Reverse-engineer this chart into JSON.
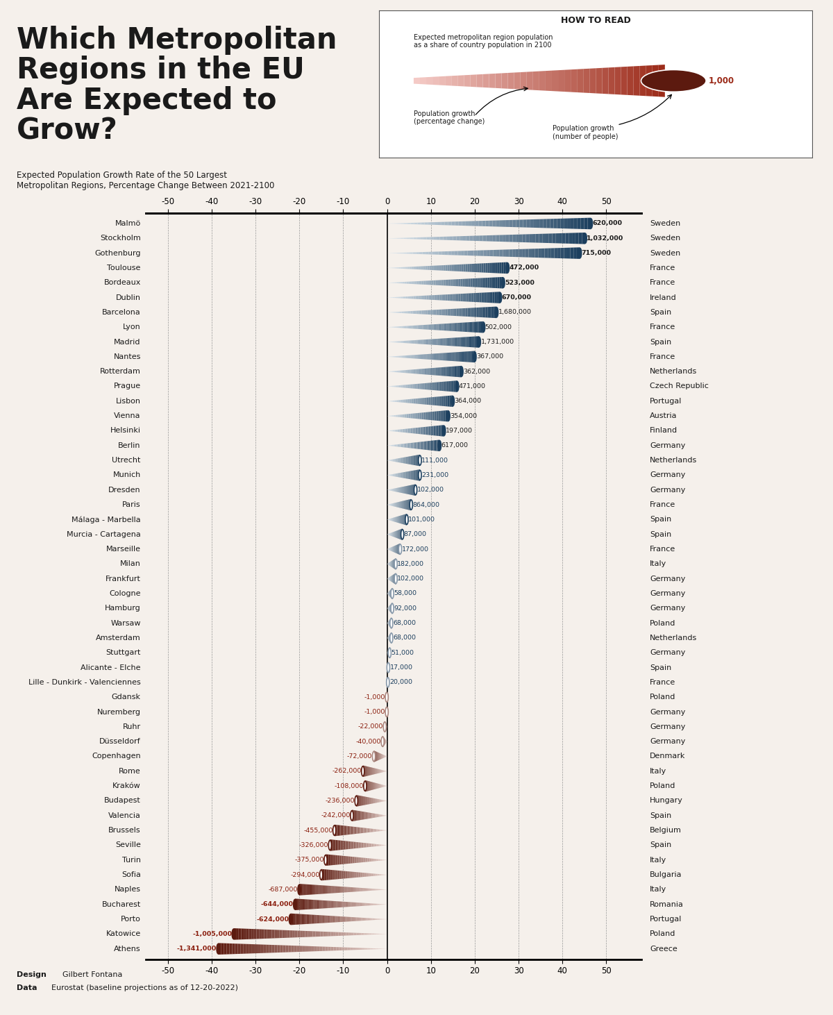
{
  "cities": [
    "Malmö",
    "Stockholm",
    "Gothenburg",
    "Toulouse",
    "Bordeaux",
    "Dublin",
    "Barcelona",
    "Lyon",
    "Madrid",
    "Nantes",
    "Rotterdam",
    "Prague",
    "Lisbon",
    "Vienna",
    "Helsinki",
    "Berlin",
    "Utrecht",
    "Munich",
    "Dresden",
    "Paris",
    "Málaga - Marbella",
    "Murcia - Cartagena",
    "Marseille",
    "Milan",
    "Frankfurt",
    "Cologne",
    "Hamburg",
    "Warsaw",
    "Amsterdam",
    "Stuttgart",
    "Alicante - Elche",
    "Lille - Dunkirk - Valenciennes",
    "Gdansk",
    "Nuremberg",
    "Ruhr",
    "Düsseldorf",
    "Copenhagen",
    "Rome",
    "Kraków",
    "Budapest",
    "Valencia",
    "Brussels",
    "Seville",
    "Turin",
    "Sofia",
    "Naples",
    "Bucharest",
    "Porto",
    "Katowice",
    "Athens"
  ],
  "countries": [
    "Sweden",
    "Sweden",
    "Sweden",
    "France",
    "France",
    "Ireland",
    "Spain",
    "France",
    "Spain",
    "France",
    "Netherlands",
    "Czech Republic",
    "Portugal",
    "Austria",
    "Finland",
    "Germany",
    "Netherlands",
    "Germany",
    "Germany",
    "France",
    "Spain",
    "Spain",
    "France",
    "Italy",
    "Germany",
    "Germany",
    "Germany",
    "Poland",
    "Netherlands",
    "Germany",
    "Spain",
    "France",
    "Poland",
    "Germany",
    "Germany",
    "Germany",
    "Denmark",
    "Italy",
    "Poland",
    "Hungary",
    "Spain",
    "Belgium",
    "Spain",
    "Italy",
    "Bulgaria",
    "Italy",
    "Romania",
    "Portugal",
    "Poland",
    "Greece"
  ],
  "pct_change": [
    46.5,
    45.2,
    44.0,
    27.5,
    26.5,
    25.8,
    25.0,
    22.0,
    21.0,
    20.0,
    17.0,
    16.0,
    15.0,
    14.0,
    13.0,
    12.0,
    7.5,
    7.5,
    6.5,
    5.5,
    4.5,
    3.5,
    3.0,
    2.0,
    2.0,
    1.2,
    1.2,
    1.0,
    1.0,
    0.6,
    0.3,
    0.2,
    -0.05,
    -0.05,
    -0.5,
    -1.0,
    -3.0,
    -5.5,
    -5.0,
    -7.0,
    -8.0,
    -12.0,
    -13.0,
    -14.0,
    -15.0,
    -20.0,
    -21.0,
    -22.0,
    -35.0,
    -38.5
  ],
  "pop_change": [
    620000,
    1032000,
    715000,
    472000,
    523000,
    670000,
    1680000,
    502000,
    1731000,
    367000,
    362000,
    471000,
    364000,
    354000,
    197000,
    617000,
    111000,
    231000,
    102000,
    864000,
    101000,
    87000,
    172000,
    182000,
    102000,
    58000,
    92000,
    68000,
    68000,
    51000,
    17000,
    20000,
    -1000,
    -1000,
    -22000,
    -40000,
    -72000,
    -262000,
    -108000,
    -236000,
    -242000,
    -455000,
    -326000,
    -375000,
    -294000,
    -687000,
    -644000,
    -624000,
    -1005000,
    -1341000
  ],
  "pos_color_dark": "#1c3f5e",
  "pos_color_light": "#dde8f0",
  "neg_color_dark": "#5c1a0f",
  "neg_color_light": "#e8d5d0",
  "background_color": "#f5f0eb",
  "text_color": "#1a1a1a",
  "pos_text_color": "#1c3f5e",
  "neg_text_color": "#8b2010",
  "xlim": [
    -55,
    58
  ],
  "xticks": [
    -50,
    -40,
    -30,
    -20,
    -10,
    0,
    10,
    20,
    30,
    40,
    50
  ]
}
